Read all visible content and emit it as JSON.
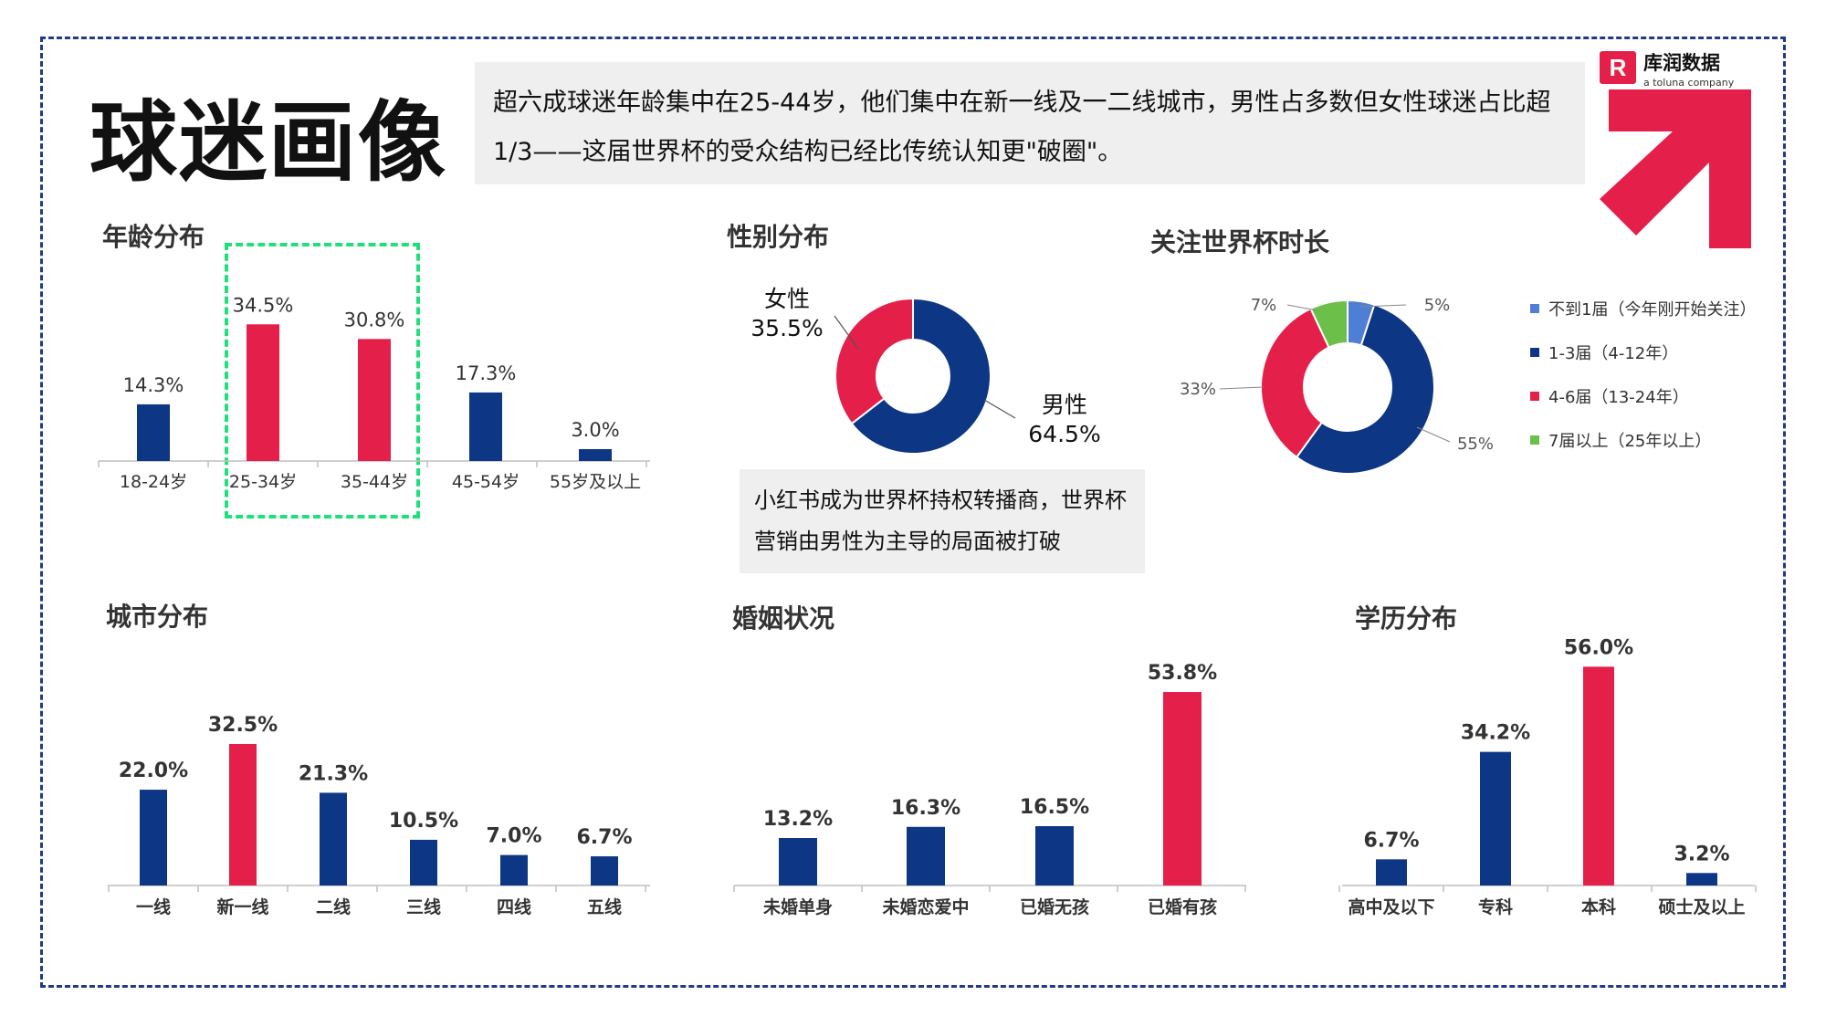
{
  "title": "球迷画像",
  "summary": "超六成球迷年龄集中在25-44岁，他们集中在新一线及一二线城市，男性占多数但女性球迷占比超1/3——这届世界杯的受众结构已经比传统认知更\"破圈\"。",
  "logo": {
    "brand": "库润数据",
    "tagline": "a toluna company"
  },
  "note": "小红书成为世界杯持权转播商，世界杯营销由男性为主导的局面被打破",
  "colors": {
    "navy": "#0d3684",
    "red": "#e4204a",
    "green": "#6cc04a",
    "blue": "#4f7fd4",
    "axis": "#bfbfbf"
  },
  "chart_data": [
    {
      "type": "bar",
      "title": "年龄分布",
      "categories": [
        "18-24岁",
        "25-34岁",
        "35-44岁",
        "45-54岁",
        "55岁及以上"
      ],
      "values": [
        14.3,
        34.5,
        30.8,
        17.3,
        3.0
      ],
      "labels": [
        "14.3%",
        "34.5%",
        "30.8%",
        "17.3%",
        "3.0%"
      ],
      "highlight": [
        false,
        true,
        true,
        false,
        false
      ]
    },
    {
      "type": "pie",
      "title": "性别分布",
      "categories": [
        "男性",
        "女性"
      ],
      "values": [
        64.5,
        35.5
      ],
      "labels": [
        "64.5%",
        "35.5%"
      ]
    },
    {
      "type": "pie",
      "title": "关注世界杯时长",
      "categories": [
        "不到1届（今年刚开始关注）",
        "1-3届（4-12年）",
        "4-6届（13-24年）",
        "7届以上（25年以上）"
      ],
      "values": [
        5,
        55,
        33,
        7
      ],
      "labels": [
        "5%",
        "55%",
        "33%",
        "7%"
      ]
    },
    {
      "type": "bar",
      "title": "城市分布",
      "categories": [
        "一线",
        "新一线",
        "二线",
        "三线",
        "四线",
        "五线"
      ],
      "values": [
        22.0,
        32.5,
        21.3,
        10.5,
        7.0,
        6.7
      ],
      "labels": [
        "22.0%",
        "32.5%",
        "21.3%",
        "10.5%",
        "7.0%",
        "6.7%"
      ],
      "highlight": [
        false,
        true,
        false,
        false,
        false,
        false
      ]
    },
    {
      "type": "bar",
      "title": "婚姻状况",
      "categories": [
        "未婚单身",
        "未婚恋爱中",
        "已婚无孩",
        "已婚有孩"
      ],
      "values": [
        13.2,
        16.3,
        16.5,
        53.8
      ],
      "labels": [
        "13.2%",
        "16.3%",
        "16.5%",
        "53.8%"
      ],
      "highlight": [
        false,
        false,
        false,
        true
      ]
    },
    {
      "type": "bar",
      "title": "学历分布",
      "categories": [
        "高中及以下",
        "专科",
        "本科",
        "硕士及以上"
      ],
      "values": [
        6.7,
        34.2,
        56.0,
        3.2
      ],
      "labels": [
        "6.7%",
        "34.2%",
        "56.0%",
        "3.2%"
      ],
      "highlight": [
        false,
        false,
        true,
        false
      ]
    }
  ]
}
